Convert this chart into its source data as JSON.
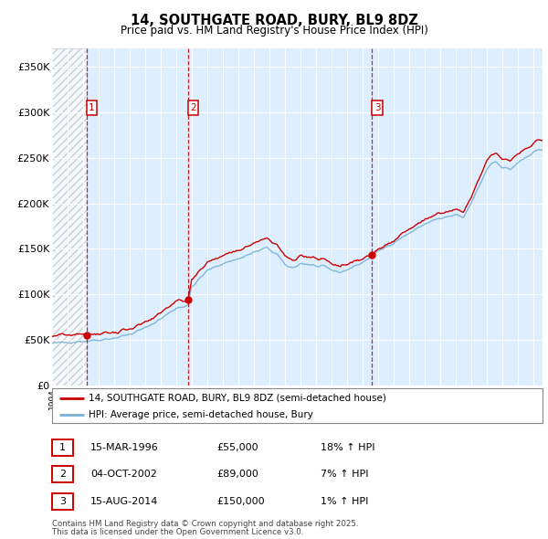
{
  "title": "14, SOUTHGATE ROAD, BURY, BL9 8DZ",
  "subtitle": "Price paid vs. HM Land Registry's House Price Index (HPI)",
  "legend_label_red": "14, SOUTHGATE ROAD, BURY, BL9 8DZ (semi-detached house)",
  "legend_label_blue": "HPI: Average price, semi-detached house, Bury",
  "footer_line1": "Contains HM Land Registry data © Crown copyright and database right 2025.",
  "footer_line2": "This data is licensed under the Open Government Licence v3.0.",
  "sales": [
    {
      "label": "1",
      "date": "15-MAR-1996",
      "price": "£55,000",
      "pct": "18% ↑ HPI",
      "x_year": 1996.21,
      "y_val": 55000
    },
    {
      "label": "2",
      "date": "04-OCT-2002",
      "price": "£89,000",
      "pct": "7% ↑ HPI",
      "x_year": 2002.75,
      "y_val": 89000
    },
    {
      "label": "3",
      "date": "15-AUG-2014",
      "price": "£150,000",
      "pct": "1% ↑ HPI",
      "x_year": 2014.62,
      "y_val": 150000
    }
  ],
  "vline_color": "#cc0000",
  "red_line_color": "#cc0000",
  "blue_line_color": "#7ab0d4",
  "bg_color": "#ddeeff",
  "ylim": [
    0,
    370000
  ],
  "xlim_start": 1994.0,
  "xlim_end": 2025.6,
  "ytick_vals": [
    0,
    50000,
    100000,
    150000,
    200000,
    250000,
    300000,
    350000
  ],
  "ytick_labels": [
    "£0",
    "£50K",
    "£100K",
    "£150K",
    "£200K",
    "£250K",
    "£300K",
    "£350K"
  ],
  "hpi_anchors_x": [
    1994.0,
    1995.0,
    1996.0,
    1997.0,
    1998.0,
    1999.0,
    2000.0,
    2001.0,
    2002.0,
    2002.75,
    2003.0,
    2004.0,
    2004.5,
    2005.0,
    2006.0,
    2007.0,
    2007.8,
    2008.5,
    2009.0,
    2009.5,
    2010.0,
    2010.5,
    2011.0,
    2011.5,
    2012.0,
    2012.5,
    2013.0,
    2013.5,
    2014.0,
    2014.6,
    2015.0,
    2015.5,
    2016.0,
    2016.5,
    2017.0,
    2017.5,
    2018.0,
    2018.5,
    2019.0,
    2019.5,
    2020.0,
    2020.5,
    2021.0,
    2021.5,
    2022.0,
    2022.3,
    2022.6,
    2023.0,
    2023.5,
    2024.0,
    2024.5,
    2025.3
  ],
  "hpi_anchors_y": [
    46000,
    47500,
    48500,
    50000,
    52000,
    56000,
    63000,
    73000,
    85000,
    88000,
    108000,
    126000,
    130000,
    134000,
    139000,
    146000,
    151000,
    144000,
    132000,
    129000,
    134000,
    133000,
    131000,
    130000,
    127000,
    124000,
    127000,
    131000,
    135000,
    142000,
    147000,
    152000,
    157000,
    162000,
    167000,
    172000,
    177000,
    181000,
    183000,
    185000,
    187000,
    184000,
    200000,
    218000,
    237000,
    244000,
    246000,
    240000,
    237000,
    244000,
    250000,
    258000
  ],
  "red_scale_anchors_x": [
    1994.0,
    1996.0,
    1996.21,
    1998.0,
    2000.0,
    2002.0,
    2002.75,
    2005.0,
    2007.0,
    2009.0,
    2011.0,
    2013.0,
    2014.62,
    2016.0,
    2018.0,
    2020.0,
    2022.0,
    2025.3
  ],
  "red_scale_anchors_y": [
    1.18,
    1.18,
    1.14,
    1.12,
    1.1,
    1.09,
    1.07,
    1.07,
    1.07,
    1.07,
    1.06,
    1.05,
    1.01,
    1.02,
    1.03,
    1.03,
    1.04,
    1.04
  ]
}
